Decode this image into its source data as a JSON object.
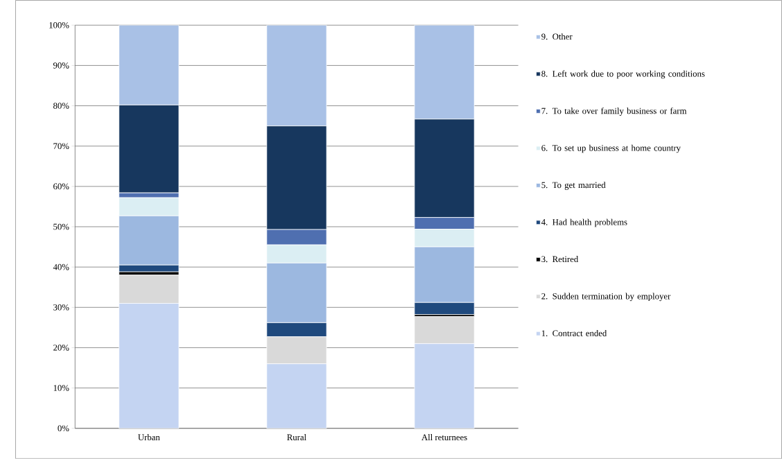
{
  "chart_data": {
    "type": "bar",
    "stacked": true,
    "categories": [
      "Urban",
      "Rural",
      "All returnees"
    ],
    "ylim": [
      0,
      100
    ],
    "yticks": [
      {
        "value": 0,
        "label": "0%"
      },
      {
        "value": 10,
        "label": "10%"
      },
      {
        "value": 20,
        "label": "20%"
      },
      {
        "value": 30,
        "label": "30%"
      },
      {
        "value": 40,
        "label": "40%"
      },
      {
        "value": 50,
        "label": "50%"
      },
      {
        "value": 60,
        "label": "60%"
      },
      {
        "value": 70,
        "label": "70%"
      },
      {
        "value": 80,
        "label": "80%"
      },
      {
        "value": 90,
        "label": "90%"
      },
      {
        "value": 100,
        "label": "100%"
      }
    ],
    "grid": "y",
    "legend": "right",
    "series": [
      {
        "name": "1. Contract ended",
        "color": "#c4d4f2",
        "values": [
          31,
          16,
          21
        ]
      },
      {
        "name": "2. Sudden termination by employer",
        "color": "#d9d9d9",
        "values": [
          7,
          6.7,
          6.7
        ]
      },
      {
        "name": "3. Retired",
        "color": "#000000",
        "values": [
          0.8,
          0,
          0.5
        ]
      },
      {
        "name": "4. Had health problems",
        "color": "#1f497d",
        "values": [
          1.7,
          3.5,
          3
        ]
      },
      {
        "name": "5. To get married",
        "color": "#9cb8e0",
        "values": [
          12.2,
          14.8,
          13.8
        ]
      },
      {
        "name": "6. To set up business at home country",
        "color": "#dbeef3",
        "values": [
          4.5,
          4.5,
          4.4
        ]
      },
      {
        "name": "7. To take over family business or farm",
        "color": "#4f6fb0",
        "values": [
          1.2,
          3.8,
          2.9
        ]
      },
      {
        "name": "8. Left work due to poor working conditions",
        "color": "#17375e",
        "values": [
          21.8,
          25.7,
          24.4
        ]
      },
      {
        "name": "9. Other",
        "color": "#a9c1e6",
        "values": [
          19.8,
          25,
          23.3
        ]
      }
    ]
  }
}
